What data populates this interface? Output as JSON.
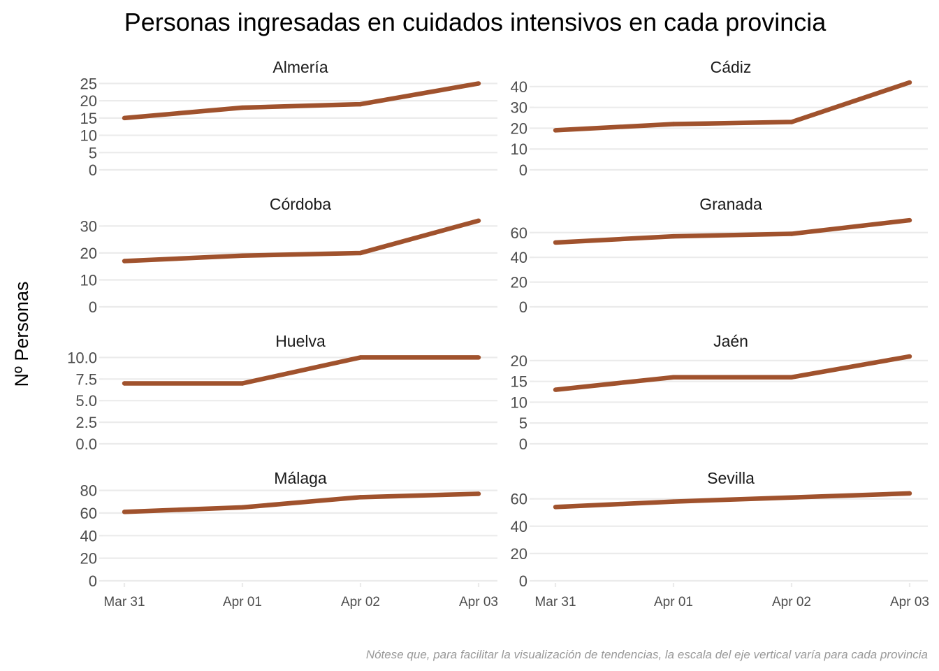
{
  "chart_data": {
    "type": "line",
    "title": "Personas ingresadas en cuidados intensivos en cada provincia",
    "ylabel": "Nº Personas",
    "xlabel": "",
    "caption": "Nótese que, para facilitar la visualización de tendencias, la escala del eje vertical varía para cada provincia",
    "x": [
      "Mar 31",
      "Apr 01",
      "Apr 02",
      "Apr 03"
    ],
    "line_color": "#a0522d",
    "grid": true,
    "facets": [
      {
        "name": "Almería",
        "values": [
          15,
          18,
          19,
          25
        ],
        "ylim": [
          0,
          26.5
        ],
        "yticks": [
          "0",
          "5",
          "10",
          "15",
          "20",
          "25"
        ],
        "ytick_values": [
          0,
          5,
          10,
          15,
          20,
          25
        ]
      },
      {
        "name": "Cádiz",
        "values": [
          19,
          22,
          23,
          42
        ],
        "ylim": [
          0,
          44
        ],
        "yticks": [
          "0",
          "10",
          "20",
          "30",
          "40"
        ],
        "ytick_values": [
          0,
          10,
          20,
          30,
          40
        ]
      },
      {
        "name": "Córdoba",
        "values": [
          17,
          19,
          20,
          32
        ],
        "ylim": [
          0,
          34
        ],
        "yticks": [
          "0",
          "10",
          "20",
          "30"
        ],
        "ytick_values": [
          0,
          10,
          20,
          30
        ]
      },
      {
        "name": "Granada",
        "values": [
          52,
          57,
          59,
          70
        ],
        "ylim": [
          0,
          74
        ],
        "yticks": [
          "0",
          "20",
          "40",
          "60"
        ],
        "ytick_values": [
          0,
          20,
          40,
          60
        ]
      },
      {
        "name": "Huelva",
        "values": [
          7,
          7,
          10,
          10
        ],
        "ylim": [
          0,
          10.6
        ],
        "yticks": [
          "0.0",
          "2.5",
          "5.0",
          "7.5",
          "10.0"
        ],
        "ytick_values": [
          0,
          2.5,
          5,
          7.5,
          10
        ]
      },
      {
        "name": "Jaén",
        "values": [
          13,
          16,
          16,
          21
        ],
        "ylim": [
          0,
          22
        ],
        "yticks": [
          "0",
          "5",
          "10",
          "15",
          "20"
        ],
        "ytick_values": [
          0,
          5,
          10,
          15,
          20
        ]
      },
      {
        "name": "Málaga",
        "values": [
          61,
          65,
          74,
          77
        ],
        "ylim": [
          0,
          81
        ],
        "yticks": [
          "0",
          "20",
          "40",
          "60",
          "80"
        ],
        "ytick_values": [
          0,
          20,
          40,
          60,
          80
        ]
      },
      {
        "name": "Sevilla",
        "values": [
          54,
          58,
          61,
          64
        ],
        "ylim": [
          0,
          67
        ],
        "yticks": [
          "0",
          "20",
          "40",
          "60"
        ],
        "ytick_values": [
          0,
          20,
          40,
          60
        ]
      }
    ]
  }
}
